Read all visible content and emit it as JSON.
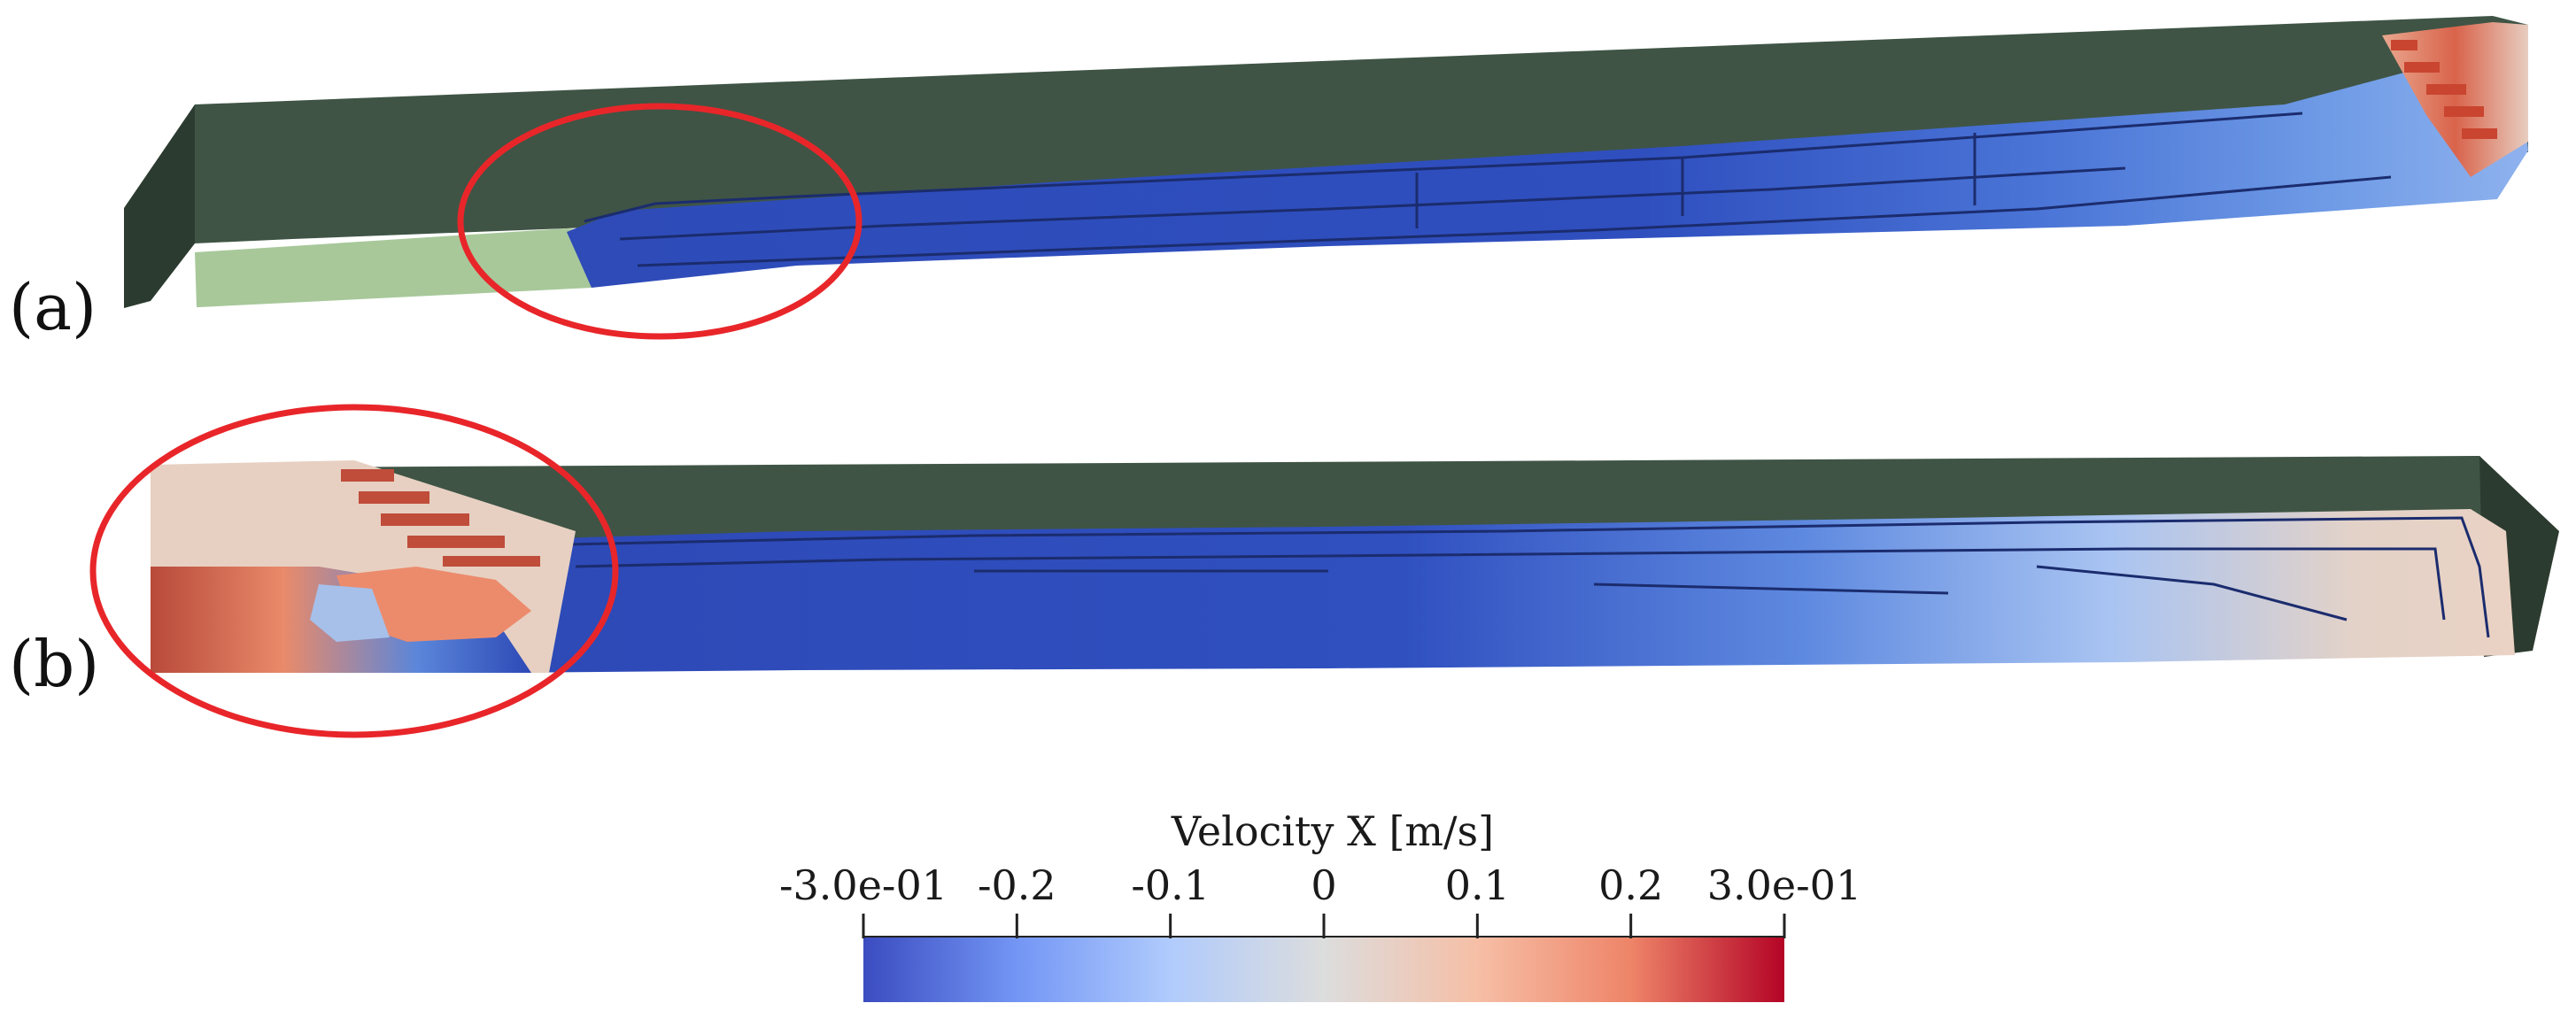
{
  "panels": {
    "a": {
      "label": "(a)"
    },
    "b": {
      "label": "(b)"
    }
  },
  "colorbar": {
    "title": "Velocity X [m/s]",
    "ticks": [
      {
        "label": "-3.0e-01",
        "value": -0.3
      },
      {
        "label": "-0.2",
        "value": -0.2
      },
      {
        "label": "-0.1",
        "value": -0.1
      },
      {
        "label": "0",
        "value": 0
      },
      {
        "label": "0.1",
        "value": 0.1
      },
      {
        "label": "0.2",
        "value": 0.2
      },
      {
        "label": "3.0e-01",
        "value": 0.3
      }
    ],
    "range": [
      -0.3,
      0.3
    ],
    "colormap": [
      "#3b4cc0",
      "#7396f5",
      "#b0cbfc",
      "#dcdddd",
      "#f6bfa6",
      "#ee8468",
      "#b40426"
    ]
  },
  "colors": {
    "channel_wall": "#3f5445",
    "channel_wall_dark": "#2c3b30",
    "dry_floor": "#a8c89a",
    "highlight_ellipse": "#e8262a"
  }
}
